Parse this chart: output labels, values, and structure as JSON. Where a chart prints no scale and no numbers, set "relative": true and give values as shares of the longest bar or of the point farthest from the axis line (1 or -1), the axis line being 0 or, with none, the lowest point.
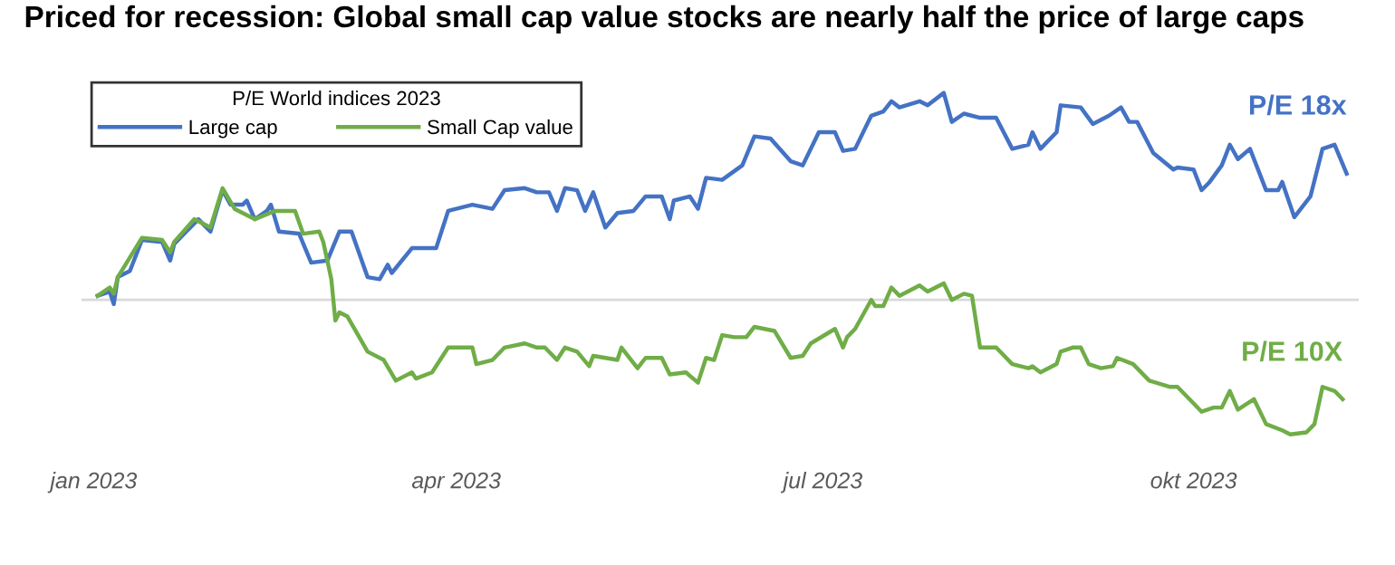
{
  "chart_data": {
    "type": "line",
    "title": "Priced for recession: Global small cap value stocks are nearly half the price of large caps",
    "relative": true,
    "legend_title": "P/E World indices 2023",
    "legend": "top left",
    "grid": false,
    "xlim": [
      "2022-12-29",
      "2023-11-11"
    ],
    "xticks": [
      {
        "value": "2023-01-01",
        "label": "jan 2023"
      },
      {
        "value": "2023-04-01",
        "label": "apr 2023"
      },
      {
        "value": "2023-07-01",
        "label": "jul 2023"
      },
      {
        "value": "2023-10-01",
        "label": "okt 2023"
      }
    ],
    "annotations": [
      "P/E 18x",
      "P/E 10X"
    ],
    "series": [
      {
        "name": "Large cap",
        "color": "#4472c4",
        "x": [
          "2023-01-02",
          "2023-01-05",
          "2023-01-06",
          "2023-01-07",
          "2023-01-10",
          "2023-01-13",
          "2023-01-18",
          "2023-01-20",
          "2023-01-21",
          "2023-01-24",
          "2023-01-27",
          "2023-01-30",
          "2023-02-02",
          "2023-02-04",
          "2023-02-07",
          "2023-02-08",
          "2023-02-10",
          "2023-02-13",
          "2023-02-14",
          "2023-02-16",
          "2023-02-21",
          "2023-02-24",
          "2023-02-28",
          "2023-03-03",
          "2023-03-06",
          "2023-03-10",
          "2023-03-13",
          "2023-03-15",
          "2023-03-16",
          "2023-03-21",
          "2023-03-27",
          "2023-03-30",
          "2023-04-05",
          "2023-04-10",
          "2023-04-13",
          "2023-04-18",
          "2023-04-21",
          "2023-04-24",
          "2023-04-26",
          "2023-04-28",
          "2023-05-01",
          "2023-05-03",
          "2023-05-05",
          "2023-05-08",
          "2023-05-11",
          "2023-05-15",
          "2023-05-18",
          "2023-05-22",
          "2023-05-24",
          "2023-05-25",
          "2023-05-29",
          "2023-05-31",
          "2023-06-02",
          "2023-06-06",
          "2023-06-11",
          "2023-06-14",
          "2023-06-18",
          "2023-06-23",
          "2023-06-26",
          "2023-06-30",
          "2023-07-04",
          "2023-07-06",
          "2023-07-09",
          "2023-07-13",
          "2023-07-16",
          "2023-07-18",
          "2023-07-20",
          "2023-07-25",
          "2023-07-27",
          "2023-07-31",
          "2023-08-02",
          "2023-08-05",
          "2023-08-09",
          "2023-08-13",
          "2023-08-17",
          "2023-08-21",
          "2023-08-22",
          "2023-08-24",
          "2023-08-28",
          "2023-08-29",
          "2023-09-03",
          "2023-09-06",
          "2023-09-10",
          "2023-09-13",
          "2023-09-15",
          "2023-09-17",
          "2023-09-21",
          "2023-09-26",
          "2023-09-27",
          "2023-10-01",
          "2023-10-03",
          "2023-10-05",
          "2023-10-08",
          "2023-10-10",
          "2023-10-12",
          "2023-10-15",
          "2023-10-19",
          "2023-10-22",
          "2023-10-23",
          "2023-10-26",
          "2023-10-30",
          "2023-11-02",
          "2023-11-05",
          "2023-11-08"
        ],
        "values": [
          0.02,
          0.04,
          -0.02,
          0.11,
          0.14,
          0.29,
          0.28,
          0.19,
          0.27,
          0.33,
          0.39,
          0.33,
          0.53,
          0.46,
          0.46,
          0.48,
          0.39,
          0.43,
          0.46,
          0.33,
          0.32,
          0.18,
          0.19,
          0.33,
          0.33,
          0.11,
          0.1,
          0.17,
          0.13,
          0.25,
          0.25,
          0.43,
          0.46,
          0.44,
          0.53,
          0.54,
          0.52,
          0.52,
          0.43,
          0.54,
          0.53,
          0.43,
          0.52,
          0.35,
          0.42,
          0.43,
          0.5,
          0.5,
          0.39,
          0.48,
          0.5,
          0.44,
          0.59,
          0.58,
          0.65,
          0.79,
          0.78,
          0.67,
          0.65,
          0.81,
          0.81,
          0.72,
          0.73,
          0.89,
          0.91,
          0.96,
          0.93,
          0.96,
          0.94,
          1.0,
          0.86,
          0.9,
          0.88,
          0.88,
          0.73,
          0.75,
          0.81,
          0.73,
          0.81,
          0.94,
          0.93,
          0.85,
          0.89,
          0.93,
          0.86,
          0.86,
          0.71,
          0.63,
          0.64,
          0.63,
          0.53,
          0.57,
          0.65,
          0.75,
          0.68,
          0.73,
          0.53,
          0.53,
          0.57,
          0.4,
          0.5,
          0.73,
          0.75,
          0.61
        ]
      },
      {
        "name": "Small Cap value",
        "color": "#70ad47",
        "x": [
          "2023-01-02",
          "2023-01-05",
          "2023-01-06",
          "2023-01-07",
          "2023-01-13",
          "2023-01-18",
          "2023-01-20",
          "2023-01-21",
          "2023-01-26",
          "2023-01-30",
          "2023-02-02",
          "2023-02-05",
          "2023-02-10",
          "2023-02-15",
          "2023-02-20",
          "2023-02-22",
          "2023-02-26",
          "2023-02-27",
          "2023-03-01",
          "2023-03-02",
          "2023-03-03",
          "2023-03-05",
          "2023-03-10",
          "2023-03-14",
          "2023-03-17",
          "2023-03-21",
          "2023-03-22",
          "2023-03-26",
          "2023-03-30",
          "2023-04-05",
          "2023-04-06",
          "2023-04-10",
          "2023-04-13",
          "2023-04-18",
          "2023-04-21",
          "2023-04-23",
          "2023-04-26",
          "2023-04-28",
          "2023-05-01",
          "2023-05-04",
          "2023-05-05",
          "2023-05-11",
          "2023-05-12",
          "2023-05-16",
          "2023-05-18",
          "2023-05-22",
          "2023-05-24",
          "2023-05-28",
          "2023-05-31",
          "2023-06-02",
          "2023-06-04",
          "2023-06-06",
          "2023-06-09",
          "2023-06-12",
          "2023-06-14",
          "2023-06-19",
          "2023-06-23",
          "2023-06-26",
          "2023-06-28",
          "2023-07-04",
          "2023-07-06",
          "2023-07-07",
          "2023-07-09",
          "2023-07-13",
          "2023-07-14",
          "2023-07-16",
          "2023-07-18",
          "2023-07-20",
          "2023-07-25",
          "2023-07-27",
          "2023-07-31",
          "2023-08-02",
          "2023-08-05",
          "2023-08-07",
          "2023-08-09",
          "2023-08-13",
          "2023-08-17",
          "2023-08-21",
          "2023-08-22",
          "2023-08-24",
          "2023-08-28",
          "2023-08-29",
          "2023-09-01",
          "2023-09-03",
          "2023-09-05",
          "2023-09-08",
          "2023-09-11",
          "2023-09-12",
          "2023-09-16",
          "2023-09-20",
          "2023-09-25",
          "2023-09-27",
          "2023-10-01",
          "2023-10-03",
          "2023-10-06",
          "2023-10-08",
          "2023-10-10",
          "2023-10-12",
          "2023-10-16",
          "2023-10-19",
          "2023-10-23",
          "2023-10-25",
          "2023-10-29",
          "2023-10-31",
          "2023-11-02",
          "2023-11-05",
          "2023-11-07"
        ],
        "values": [
          0.02,
          0.06,
          0.03,
          0.11,
          0.3,
          0.29,
          0.23,
          0.28,
          0.39,
          0.35,
          0.54,
          0.44,
          0.39,
          0.43,
          0.43,
          0.32,
          0.33,
          0.28,
          0.1,
          -0.1,
          -0.06,
          -0.08,
          -0.25,
          -0.29,
          -0.39,
          -0.35,
          -0.38,
          -0.35,
          -0.23,
          -0.23,
          -0.31,
          -0.29,
          -0.23,
          -0.21,
          -0.23,
          -0.23,
          -0.29,
          -0.23,
          -0.25,
          -0.32,
          -0.27,
          -0.29,
          -0.23,
          -0.33,
          -0.28,
          -0.28,
          -0.36,
          -0.35,
          -0.4,
          -0.28,
          -0.29,
          -0.17,
          -0.18,
          -0.18,
          -0.13,
          -0.15,
          -0.28,
          -0.27,
          -0.21,
          -0.14,
          -0.23,
          -0.18,
          -0.14,
          0.0,
          -0.03,
          -0.03,
          0.06,
          0.02,
          0.07,
          0.04,
          0.08,
          0.0,
          0.03,
          0.02,
          -0.23,
          -0.23,
          -0.31,
          -0.33,
          -0.32,
          -0.35,
          -0.31,
          -0.25,
          -0.23,
          -0.23,
          -0.31,
          -0.33,
          -0.32,
          -0.28,
          -0.31,
          -0.39,
          -0.42,
          -0.42,
          -0.5,
          -0.54,
          -0.52,
          -0.52,
          -0.44,
          -0.53,
          -0.48,
          -0.6,
          -0.63,
          -0.65,
          -0.64,
          -0.6,
          -0.42,
          -0.44,
          -0.48
        ]
      }
    ]
  }
}
